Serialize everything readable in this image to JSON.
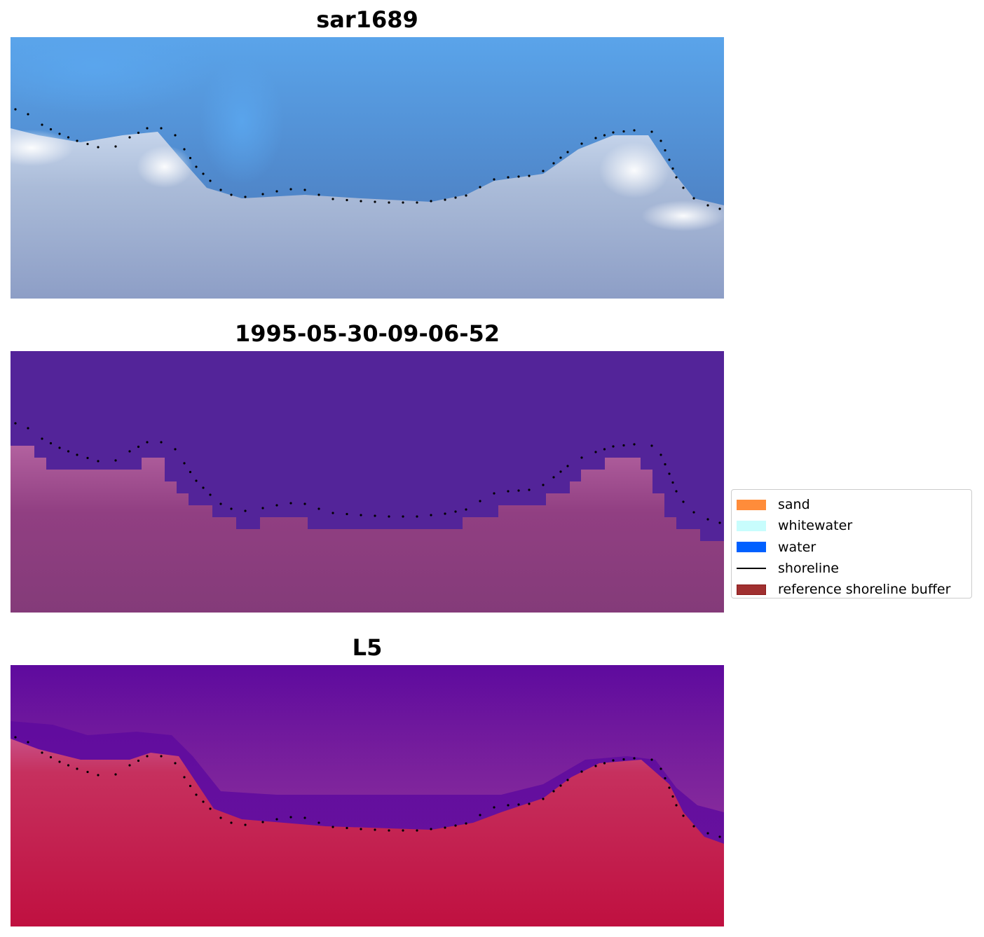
{
  "panels": [
    {
      "title": "sar1689",
      "kind": "satellite-rgb"
    },
    {
      "title": "1995-05-30-09-06-52",
      "kind": "classification"
    },
    {
      "title": "L5",
      "kind": "water-index"
    }
  ],
  "legend": {
    "placement": "right-middle",
    "items": [
      {
        "label": "sand",
        "type": "patch",
        "color": "#ff8c3a"
      },
      {
        "label": "whitewater",
        "type": "patch",
        "color": "#c8fdfd"
      },
      {
        "label": "water",
        "type": "patch",
        "color": "#0060ff"
      },
      {
        "label": "shoreline",
        "type": "line",
        "color": "#000000"
      },
      {
        "label": "reference shoreline buffer",
        "type": "patch",
        "color": "#a03030",
        "edge": "#8b1a1a"
      }
    ]
  },
  "colors": {
    "classification_water": "#532499",
    "classification_land": "#8b3f7e",
    "index_water": "#5a08a0",
    "index_land": "#c0103e"
  }
}
